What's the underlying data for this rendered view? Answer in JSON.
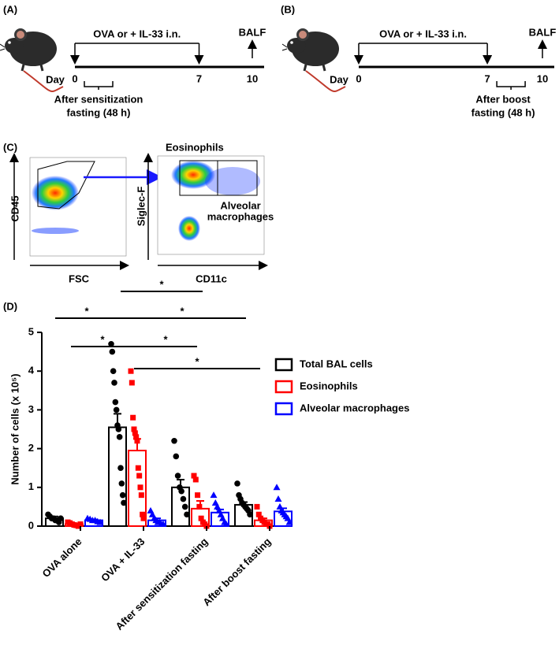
{
  "panel_a": {
    "label": "(A)",
    "treatment": "OVA or + IL-33 i.n.",
    "endpoint": "BALF",
    "axis_label": "Day",
    "days": [
      0,
      7,
      10
    ],
    "fasting": [
      "After sensitization",
      "fasting (48 h)"
    ]
  },
  "panel_b": {
    "label": "(B)",
    "treatment": "OVA or + IL-33 i.n.",
    "endpoint": "BALF",
    "axis_label": "Day",
    "days": [
      0,
      7,
      10
    ],
    "fasting": [
      "After boost",
      "fasting (48 h)"
    ]
  },
  "panel_c": {
    "label": "(C)",
    "plot1": {
      "y_label": "CD45",
      "x_label": "FSC"
    },
    "plot2": {
      "y_label": "Siglec-F",
      "x_label": "CD11c",
      "gate1": "Eosinophils",
      "gate2": [
        "Alveolar",
        "macrophages"
      ]
    }
  },
  "chart_data": {
    "type": "bar",
    "panel_label": "(D)",
    "ylabel": "Number of cells (x 10⁵)",
    "categories": [
      "OVA alone",
      "OVA + IL-33",
      "After sensitization fasting",
      "After boost fasting"
    ],
    "series": [
      {
        "name": "Total BAL cells",
        "color": "#000000",
        "marker": "circle",
        "values": [
          0.2,
          2.55,
          1.0,
          0.55
        ],
        "errors": [
          0.05,
          0.35,
          0.2,
          0.07
        ],
        "points": [
          [
            0.3,
            0.25,
            0.2,
            0.2,
            0.15,
            0.15,
            0.1,
            0.2
          ],
          [
            4.7,
            4.5,
            4.0,
            3.7,
            3.2,
            3.0,
            2.6,
            2.5,
            2.3,
            1.5,
            1.1,
            0.8,
            0.6
          ],
          [
            2.2,
            1.8,
            1.3,
            1.0,
            0.9,
            0.7,
            0.5,
            0.3
          ],
          [
            1.1,
            0.8,
            0.7,
            0.6,
            0.55,
            0.5,
            0.45,
            0.4,
            0.3
          ]
        ]
      },
      {
        "name": "Eosinophils",
        "color": "#ff0000",
        "marker": "square",
        "values": [
          0.05,
          1.95,
          0.45,
          0.15
        ],
        "errors": [
          0.02,
          0.3,
          0.2,
          0.05
        ],
        "points": [
          [
            0.1,
            0.08,
            0.05,
            0.03,
            0.02,
            0.0,
            0.05
          ],
          [
            4.0,
            3.7,
            2.8,
            2.5,
            2.4,
            2.3,
            2.2,
            1.5,
            1.3,
            1.0,
            0.8,
            0.3,
            0.2
          ],
          [
            1.3,
            1.2,
            0.8,
            0.5,
            0.2,
            0.1,
            0.05,
            0.0
          ],
          [
            0.5,
            0.3,
            0.2,
            0.15,
            0.1,
            0.05,
            0.05,
            0.0
          ]
        ]
      },
      {
        "name": "Alveolar macrophages",
        "color": "#0000ff",
        "marker": "triangle",
        "values": [
          0.15,
          0.15,
          0.35,
          0.38
        ],
        "errors": [
          0.02,
          0.05,
          0.08,
          0.08
        ],
        "points": [
          [
            0.2,
            0.18,
            0.15,
            0.15,
            0.12,
            0.1
          ],
          [
            0.4,
            0.3,
            0.2,
            0.15,
            0.1,
            0.1,
            0.05,
            0.05
          ],
          [
            0.8,
            0.6,
            0.5,
            0.4,
            0.3,
            0.2,
            0.1,
            0.05
          ],
          [
            1.0,
            0.7,
            0.5,
            0.4,
            0.35,
            0.3,
            0.25,
            0.2,
            0.1
          ]
        ]
      }
    ],
    "ylim": [
      0,
      5
    ],
    "yticks": [
      0,
      1,
      2,
      3,
      4,
      5
    ],
    "annotations": [
      {
        "label": "*"
      },
      {
        "label": "*"
      },
      {
        "label": "*"
      },
      {
        "label": "*"
      },
      {
        "label": "*"
      },
      {
        "label": "*"
      }
    ]
  }
}
